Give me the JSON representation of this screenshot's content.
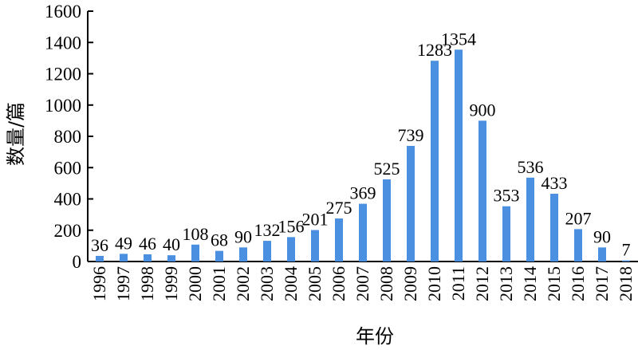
{
  "chart_data": {
    "type": "bar",
    "title": "",
    "xlabel": "年份",
    "ylabel": "数量/篇",
    "ylim": [
      0,
      1600
    ],
    "yticks": [
      0,
      200,
      400,
      600,
      800,
      1000,
      1200,
      1400,
      1600
    ],
    "categories": [
      "1996",
      "1997",
      "1998",
      "1999",
      "2000",
      "2001",
      "2002",
      "2003",
      "2004",
      "2005",
      "2006",
      "2007",
      "2008",
      "2009",
      "2010",
      "2011",
      "2012",
      "2013",
      "2014",
      "2015",
      "2016",
      "2017",
      "2018"
    ],
    "values": [
      36,
      49,
      46,
      40,
      108,
      68,
      90,
      132,
      156,
      201,
      275,
      369,
      525,
      739,
      1283,
      1354,
      900,
      353,
      536,
      433,
      207,
      90,
      7
    ],
    "data_labels": [
      "36",
      "49",
      "46",
      "40",
      "108",
      "68",
      "90",
      "132",
      "156",
      "201",
      "275",
      "369",
      "525",
      "739",
      "1283",
      "1354",
      "900",
      "353",
      "536",
      "433",
      "207",
      "90",
      "7"
    ],
    "grid": false,
    "legend": "none",
    "bar_color": "#4a8fe0"
  }
}
